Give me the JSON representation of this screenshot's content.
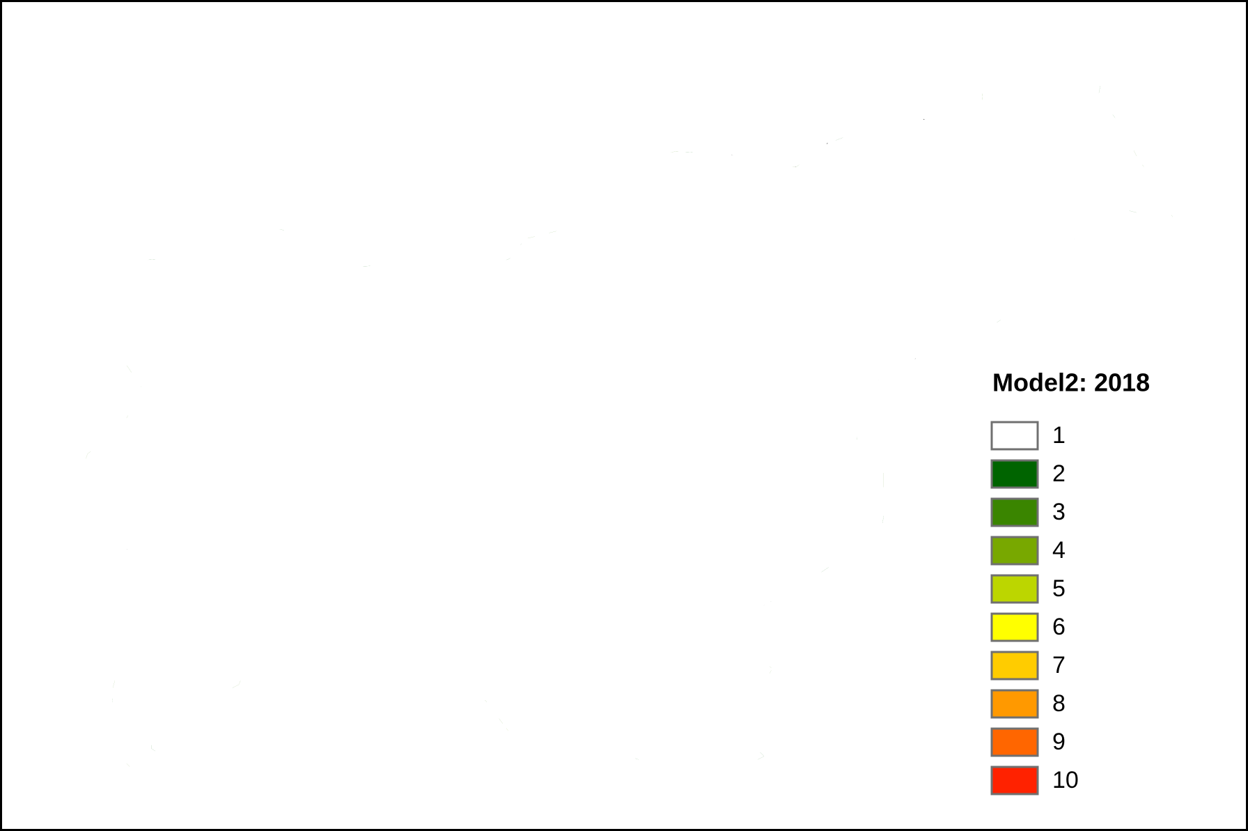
{
  "legend": {
    "title": "Model2: 2018",
    "items": [
      {
        "label": 1,
        "color": "#ffffff"
      },
      {
        "label": 2,
        "color": "#006400"
      },
      {
        "label": 3,
        "color": "#3a8500"
      },
      {
        "label": 4,
        "color": "#78a800"
      },
      {
        "label": 5,
        "color": "#bcd600"
      },
      {
        "label": 6,
        "color": "#ffff00"
      },
      {
        "label": 7,
        "color": "#ffcc00"
      },
      {
        "label": 8,
        "color": "#ff9900"
      },
      {
        "label": 9,
        "color": "#ff6600"
      },
      {
        "label": 10,
        "color": "#ff2200"
      }
    ]
  }
}
